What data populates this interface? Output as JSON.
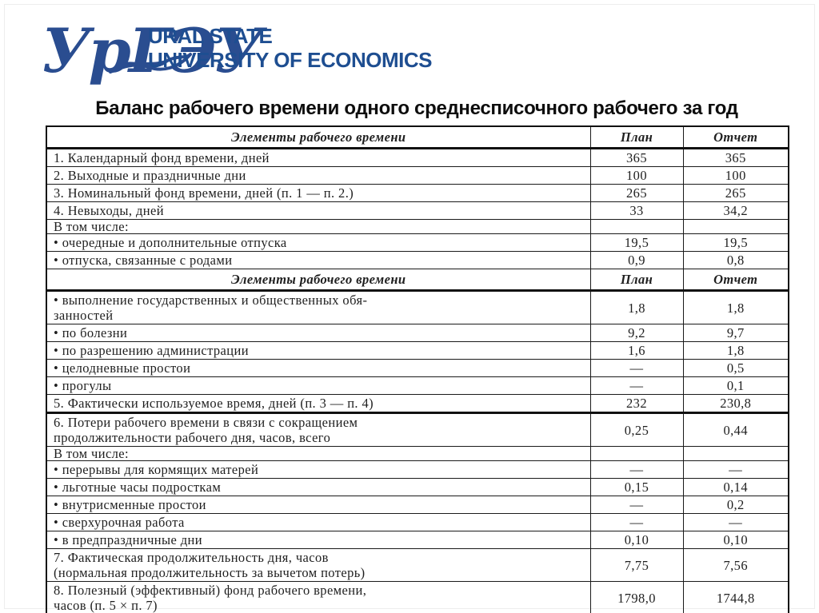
{
  "logo": {
    "acronym": "УрГЭУ",
    "swoosh_icon": "book-swoosh-icon",
    "wordmark_line1": "URAL STATE",
    "wordmark_line2": "UNIVERSITY OF ECONOMICS",
    "brand_color": "#2a4d90",
    "wordmark_color": "#1e4e91"
  },
  "title": "Баланс рабочего времени одного среднесписочного рабочего за год",
  "table": {
    "columns": [
      "Элементы рабочего времени",
      "План",
      "Отчет"
    ],
    "rows": [
      {
        "type": "header",
        "label": "Элементы рабочего времени",
        "plan": "План",
        "report": "Отчет",
        "thick_bottom": true
      },
      {
        "type": "row",
        "label": "1. Календарный фонд времени, дней",
        "plan": "365",
        "report": "365"
      },
      {
        "type": "row",
        "label": "2. Выходные и праздничные дни",
        "plan": "100",
        "report": "100"
      },
      {
        "type": "row",
        "label": "3. Номинальный фонд времени, дней (п. 1 — п. 2.)",
        "plan": "265",
        "report": "265"
      },
      {
        "type": "row",
        "label": "4. Невыходы, дней",
        "plan": "33",
        "report": "34,2"
      },
      {
        "type": "section",
        "label": "В том числе:",
        "plan": "",
        "report": ""
      },
      {
        "type": "row",
        "label": "• очередные и дополнительные отпуска",
        "plan": "19,5",
        "report": "19,5"
      },
      {
        "type": "row",
        "label": "• отпуска, связанные с родами",
        "plan": "0,9",
        "report": "0,8"
      },
      {
        "type": "header",
        "label": "Элементы рабочего времени",
        "plan": "План",
        "report": "Отчет",
        "thick_bottom": true
      },
      {
        "type": "row",
        "label": "• выполнение государственных и общественных обя-\nзанностей",
        "plan": "1,8",
        "report": "1,8"
      },
      {
        "type": "row",
        "label": "• по болезни",
        "plan": "9,2",
        "report": "9,7"
      },
      {
        "type": "row",
        "label": "• по разрешению администрации",
        "plan": "1,6",
        "report": "1,8"
      },
      {
        "type": "row",
        "label": "• целодневные простои",
        "plan": "—",
        "report": "0,5"
      },
      {
        "type": "row",
        "label": "• прогулы",
        "plan": "—",
        "report": "0,1"
      },
      {
        "type": "row",
        "label": "5. Фактически используемое время, дней (п. 3 — п. 4)",
        "plan": "232",
        "report": "230,8",
        "thick_bottom": true
      },
      {
        "type": "row",
        "label": "6. Потери рабочего времени в связи с сокращением\nпродолжительности рабочего дня, часов, всего",
        "plan": "0,25",
        "report": "0,44"
      },
      {
        "type": "section",
        "label": "В том числе:",
        "plan": "",
        "report": ""
      },
      {
        "type": "row",
        "label": "• перерывы для кормящих матерей",
        "plan": "—",
        "report": "—"
      },
      {
        "type": "row",
        "label": "• льготные часы подросткам",
        "plan": "0,15",
        "report": "0,14"
      },
      {
        "type": "row",
        "label": "• внутрисменные простои",
        "plan": "—",
        "report": "0,2"
      },
      {
        "type": "row",
        "label": "• сверхурочная работа",
        "plan": "—",
        "report": "—"
      },
      {
        "type": "row",
        "label": "• в предпраздничные дни",
        "plan": "0,10",
        "report": "0,10"
      },
      {
        "type": "row",
        "label": "7. Фактическая продолжительность дня, часов\n(нормальная продолжительность за вычетом потерь)",
        "plan": "7,75",
        "report": "7,56"
      },
      {
        "type": "row",
        "label": "8. Полезный (эффективный) фонд рабочего времени,\nчасов (п. 5 × п. 7)",
        "plan": "1798,0",
        "report": "1744,8"
      }
    ]
  }
}
